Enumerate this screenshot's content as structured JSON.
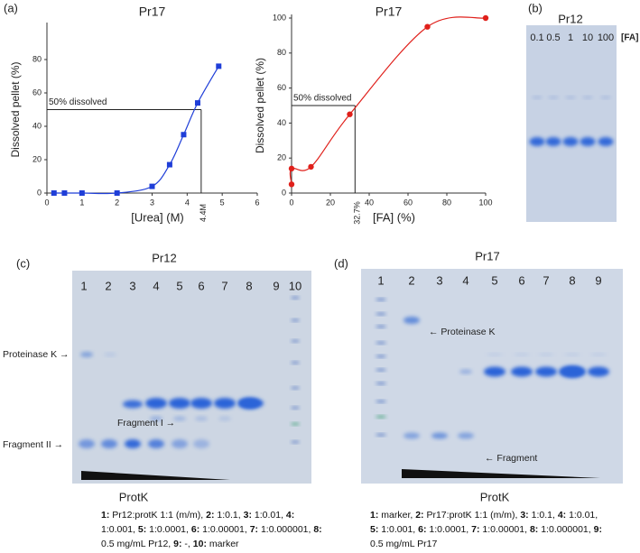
{
  "chart_data": [
    {
      "type": "line",
      "panel": "(a)",
      "title": "Pr17",
      "x_label": "[Urea] (M)",
      "y_label": "Dissolved pellet (%)",
      "x": [
        0.2,
        0.5,
        1,
        2,
        3,
        3.5,
        3.9,
        4.3,
        4.9
      ],
      "values": [
        0,
        0,
        0,
        0,
        4,
        17,
        35,
        54,
        76
      ],
      "color": "#1f3ed8",
      "marker": "square",
      "xlim": [
        0,
        6
      ],
      "xticks": [
        0,
        1,
        2,
        3,
        4,
        5,
        6
      ],
      "ylim": [
        0,
        100
      ],
      "yticks": [
        0,
        20,
        40,
        60,
        80
      ],
      "annotation": {
        "text": "50% dissolved",
        "x": 4.4,
        "y": 50,
        "x_label": "4.4M"
      }
    },
    {
      "type": "line",
      "title": "Pr17",
      "x_label": "[FA] (%)",
      "y_label": "Dissolved pellet (%)",
      "x": [
        0,
        0,
        10,
        30,
        70,
        100
      ],
      "values": [
        5,
        14,
        15,
        45,
        95,
        100
      ],
      "color": "#e0201b",
      "marker": "circle",
      "xlim": [
        0,
        100
      ],
      "xticks": [
        0,
        20,
        40,
        60,
        80,
        100
      ],
      "ylim": [
        0,
        100
      ],
      "yticks": [
        0,
        20,
        40,
        60,
        80,
        100
      ],
      "annotation": {
        "text": "50% dissolved",
        "x": 32.7,
        "y": 50,
        "x_label": "32.7%"
      }
    }
  ],
  "gels": {
    "b": {
      "panel": "(b)",
      "title": "Pr12",
      "lanes": [
        "0.1",
        "0.5",
        "1",
        "10",
        "100"
      ],
      "axis_label": "[FA]"
    },
    "c": {
      "panel": "(c)",
      "title": "Pr12",
      "lanes": [
        "1",
        "2",
        "3",
        "4",
        "5",
        "6",
        "7",
        "8",
        "9",
        "10"
      ],
      "labels": [
        "Proteinase K →",
        "Fragment II →",
        "Fragment I →"
      ],
      "enzyme": "ProtK",
      "caption": [
        {
          "num": "1:",
          "text": "Pr12:protK 1:1 (m/m),"
        },
        {
          "num": "2:",
          "text": "1:0.1,"
        },
        {
          "num": "3:",
          "text": "1:0.01,"
        },
        {
          "num": "4:",
          "text": "1:0.001,"
        },
        {
          "num": "5:",
          "text": "1:0.0001,"
        },
        {
          "num": "6:",
          "text": "1:0.00001,"
        },
        {
          "num": "7:",
          "text": "1:0.000001,"
        },
        {
          "num": "8:",
          "text": "0.5 mg/mL Pr12,"
        },
        {
          "num": "9:",
          "text": "-,"
        },
        {
          "num": "10:",
          "text": "marker"
        }
      ]
    },
    "d": {
      "panel": "(d)",
      "title": "Pr17",
      "lanes": [
        "1",
        "2",
        "3",
        "4",
        "5",
        "6",
        "7",
        "8",
        "9"
      ],
      "labels": [
        "← Proteinase K",
        "← Fragment"
      ],
      "enzyme": "ProtK",
      "caption": [
        {
          "num": "1:",
          "text": "marker,"
        },
        {
          "num": "2:",
          "text": "Pr17:protK 1:1 (m/m),"
        },
        {
          "num": "3:",
          "text": "1:0.1,"
        },
        {
          "num": "4:",
          "text": "1:0.01,"
        },
        {
          "num": "5:",
          "text": "1:0.001,"
        },
        {
          "num": "6:",
          "text": "1:0.0001,"
        },
        {
          "num": "7:",
          "text": "1:0.00001,"
        },
        {
          "num": "8:",
          "text": "1:0.000001,"
        },
        {
          "num": "9:",
          "text": "0.5 mg/mL Pr17"
        }
      ]
    }
  }
}
